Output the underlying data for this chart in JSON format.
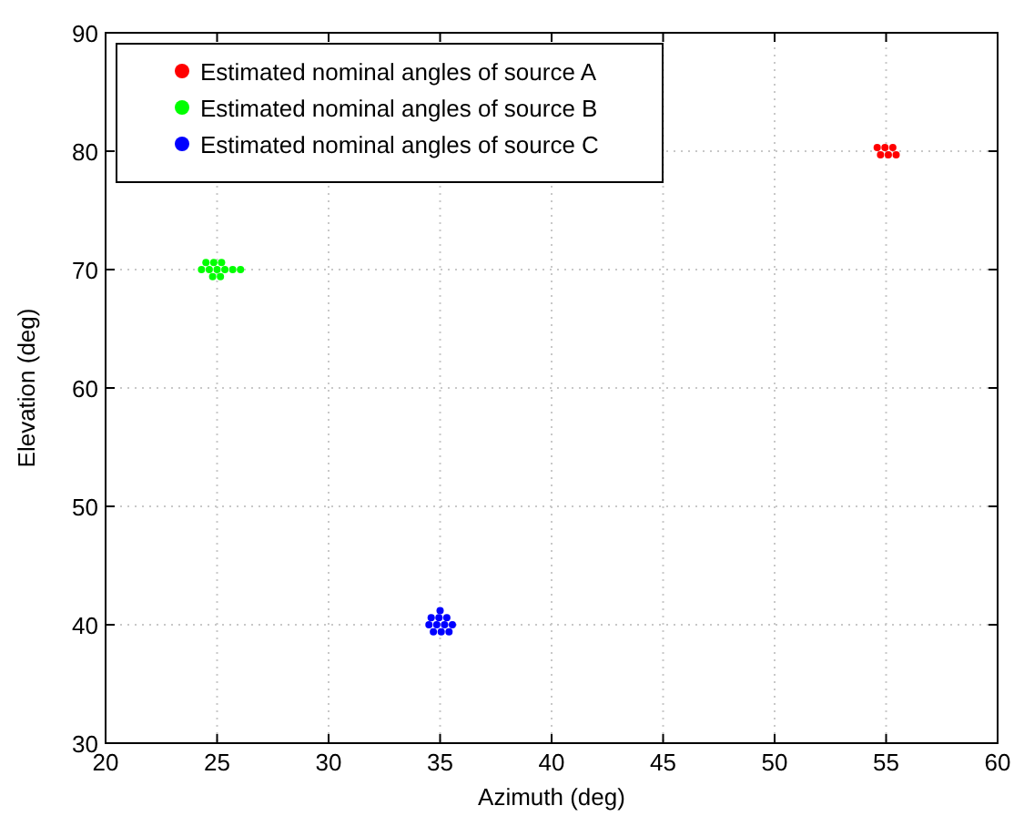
{
  "chart_data": {
    "type": "scatter",
    "xlabel": "Azimuth (deg)",
    "ylabel": "Elevation (deg)",
    "xlim": [
      20,
      60
    ],
    "ylim": [
      30,
      90
    ],
    "xticks": [
      20,
      25,
      30,
      35,
      40,
      45,
      50,
      55,
      60
    ],
    "yticks": [
      30,
      40,
      50,
      60,
      70,
      80,
      90
    ],
    "grid": true,
    "legend": "top left",
    "marker": "circle",
    "series": [
      {
        "name": "Estimated nominal angles of source A",
        "color": "#ff0000",
        "x": [
          54.6,
          54.95,
          55.3,
          54.75,
          55.1,
          55.45
        ],
        "values": [
          80.3,
          80.3,
          80.3,
          79.7,
          79.7,
          79.7
        ]
      },
      {
        "name": "Estimated nominal angles of source B",
        "color": "#00ff00",
        "x": [
          24.3,
          24.65,
          25,
          25.35,
          25.7,
          26.05,
          24.5,
          24.85,
          25.2,
          24.8,
          25.15
        ],
        "values": [
          70,
          70,
          70,
          70,
          70,
          70,
          70.6,
          70.6,
          70.6,
          69.4,
          69.4
        ]
      },
      {
        "name": "Estimated nominal angles of source C",
        "color": "#0000ff",
        "x": [
          34.6,
          34.95,
          35.3,
          34.5,
          34.85,
          35.2,
          35.55,
          34.7,
          35.05,
          35.4,
          35
        ],
        "values": [
          40.6,
          40.6,
          40.6,
          40,
          40,
          40,
          40,
          39.4,
          39.4,
          39.4,
          41.2
        ]
      }
    ]
  }
}
